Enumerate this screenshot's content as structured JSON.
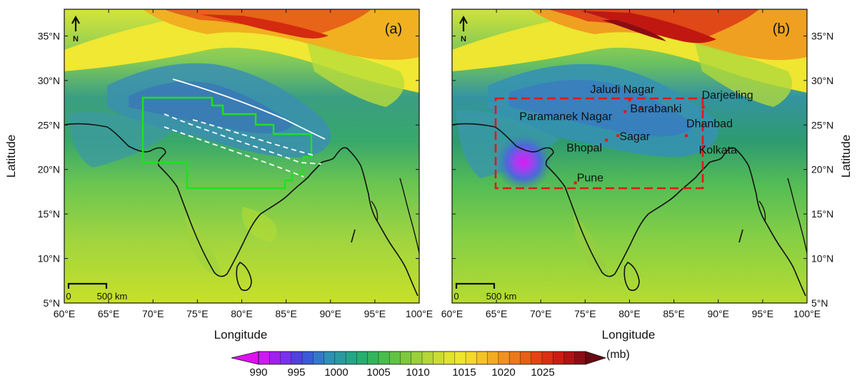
{
  "panels": [
    {
      "label": "(a)",
      "north": "N",
      "scale_zero": "0",
      "scale_text": "500 km",
      "lon_ticks": [
        "60°E",
        "65°E",
        "70°E",
        "75°E",
        "80°E",
        "85°E",
        "90°E",
        "95°E",
        "100°E"
      ],
      "lat_ticks": [
        "5°N",
        "10°N",
        "15°N",
        "20°N",
        "25°N",
        "30°N",
        "35°N"
      ],
      "xlabel": "Longitude",
      "ylabel": "Latitude",
      "lat_axis_side": "left"
    },
    {
      "label": "(b)",
      "north": "N",
      "scale_zero": "0",
      "scale_text": "500 km",
      "lon_ticks": [
        "60°E",
        "65°E",
        "70°E",
        "75°E",
        "80°E",
        "85°E",
        "90°E",
        "95°E",
        "100°E"
      ],
      "lat_ticks": [
        "5°N",
        "10°N",
        "15°N",
        "20°N",
        "25°N",
        "30°N",
        "35°N"
      ],
      "xlabel": "Longitude",
      "ylabel": "Latitude",
      "lat_axis_side": "right",
      "cities": [
        {
          "name": "Jaludi Nagar",
          "lon": 80.0,
          "lat": 27.8
        },
        {
          "name": "Darjeeling",
          "lon": 88.3,
          "lat": 27.0
        },
        {
          "name": "Paramanek Nagar",
          "lon": 79.5,
          "lat": 26.5
        },
        {
          "name": "Barabanki",
          "lon": 81.2,
          "lat": 26.9
        },
        {
          "name": "Dhanbad",
          "lon": 86.4,
          "lat": 23.8
        },
        {
          "name": "Sagar",
          "lon": 78.7,
          "lat": 23.8
        },
        {
          "name": "Kolkata",
          "lon": 88.3,
          "lat": 22.6
        },
        {
          "name": "Bhopal",
          "lon": 77.4,
          "lat": 23.3
        },
        {
          "name": "Pune",
          "lon": 73.9,
          "lat": 18.5
        }
      ]
    }
  ],
  "colorbar": {
    "unit": "(mb)",
    "tick_labels": [
      "990",
      "995",
      "1000",
      "1005",
      "1010",
      "1015",
      "1020",
      "1025"
    ],
    "range_mb": [
      988,
      1026
    ]
  },
  "colors": {
    "low": "#c020f0",
    "mid_low": "#2e8fa5",
    "mid": "#4fbf5a",
    "high_mid": "#e8e628",
    "high": "#e8350f",
    "highest": "#8c0c14",
    "border": "#111111",
    "green_polygon": "#20e020",
    "red_box": "#e01818",
    "tracks": "#ffffff"
  }
}
